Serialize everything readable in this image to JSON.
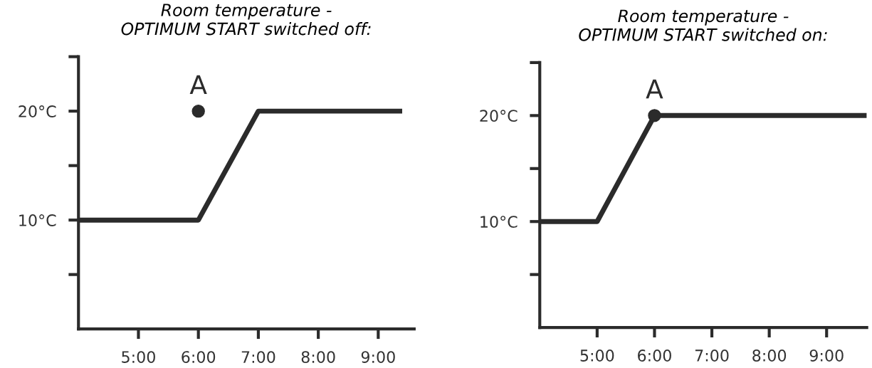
{
  "chart_data": [
    {
      "type": "line",
      "title": "Room temperature -\nOPTIMUM START switched off:",
      "series": [
        {
          "x": [
            4,
            6,
            7,
            9.4
          ],
          "values": [
            10,
            10,
            20,
            20
          ],
          "color": "#2b2b2b"
        },
        {
          "type": "scatter",
          "x": [
            6
          ],
          "values": [
            20
          ],
          "color": "#2b2b2b",
          "marker": "circle"
        }
      ],
      "annotations": [
        {
          "text": "A",
          "x": 6,
          "y": 20
        }
      ],
      "xlim": [
        4,
        9.6
      ],
      "ylim": [
        0,
        25
      ],
      "xticks": [
        {
          "value": 5,
          "label": "5:00"
        },
        {
          "value": 6,
          "label": "6:00"
        },
        {
          "value": 7,
          "label": "7:00"
        },
        {
          "value": 8,
          "label": "8:00"
        },
        {
          "value": 9,
          "label": "9:00"
        }
      ],
      "yticks": [
        {
          "value": 5,
          "label": null
        },
        {
          "value": 10,
          "label": "10°C"
        },
        {
          "value": 15,
          "label": null
        },
        {
          "value": 20,
          "label": "20°C"
        },
        {
          "value": 25,
          "label": null
        }
      ]
    },
    {
      "type": "line",
      "title": "Room temperature -\nOPTIMUM START switched on:",
      "series": [
        {
          "x": [
            4,
            5,
            6,
            9.7
          ],
          "values": [
            10,
            10,
            20,
            20
          ],
          "color": "#2b2b2b"
        },
        {
          "type": "scatter",
          "x": [
            6
          ],
          "values": [
            20
          ],
          "color": "#2b2b2b",
          "marker": "circle"
        }
      ],
      "annotations": [
        {
          "text": "A",
          "x": 6,
          "y": 20
        }
      ],
      "xlim": [
        4,
        9.7
      ],
      "ylim": [
        0,
        25
      ],
      "xticks": [
        {
          "value": 5,
          "label": "5:00"
        },
        {
          "value": 6,
          "label": "6:00"
        },
        {
          "value": 7,
          "label": "7:00"
        },
        {
          "value": 8,
          "label": "8:00"
        },
        {
          "value": 9,
          "label": "9:00"
        }
      ],
      "yticks": [
        {
          "value": 5,
          "label": null
        },
        {
          "value": 10,
          "label": "10°C"
        },
        {
          "value": 15,
          "label": null
        },
        {
          "value": 20,
          "label": "20°C"
        },
        {
          "value": 25,
          "label": null
        }
      ]
    }
  ]
}
